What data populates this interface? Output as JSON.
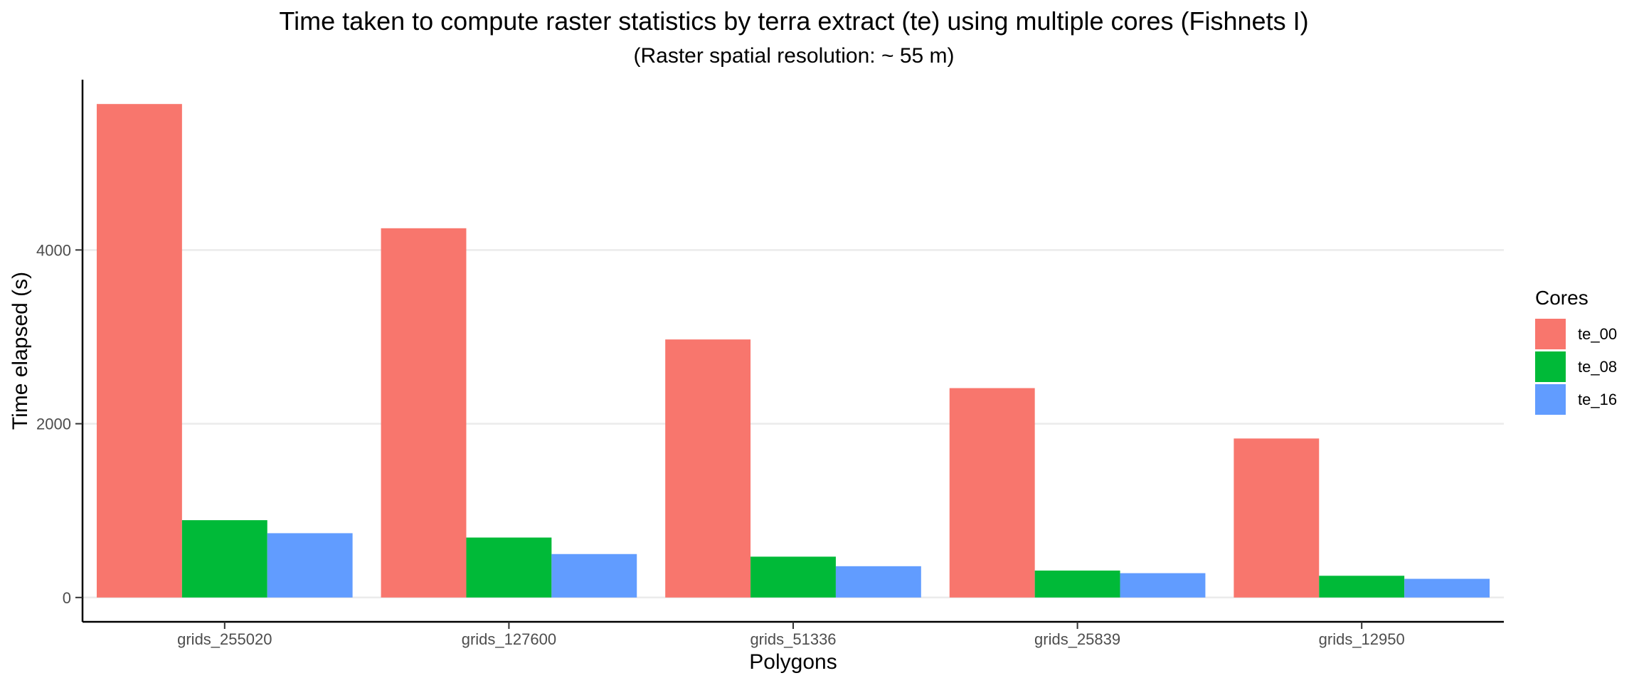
{
  "chart_data": {
    "type": "bar",
    "title": "Time taken to compute raster statistics by terra extract (te) using multiple cores (Fishnets I)",
    "subtitle": "(Raster spatial resolution: ~ 55 m)",
    "xlabel": "Polygons",
    "ylabel": "Time elapsed (s)",
    "categories": [
      "grids_255020",
      "grids_127600",
      "grids_51336",
      "grids_25839",
      "grids_12950"
    ],
    "series": [
      {
        "name": "te_00",
        "color": "#F8766D",
        "values": [
          5680,
          4250,
          2970,
          2410,
          1830
        ]
      },
      {
        "name": "te_08",
        "color": "#00BA38",
        "values": [
          890,
          690,
          470,
          310,
          250
        ]
      },
      {
        "name": "te_16",
        "color": "#619CFF",
        "values": [
          740,
          500,
          360,
          280,
          215
        ]
      }
    ],
    "yticks": [
      0,
      2000,
      4000
    ],
    "ylim": [
      -280,
      5960
    ],
    "grid": "horizontal major",
    "legend": {
      "title": "Cores",
      "position": "right"
    }
  }
}
